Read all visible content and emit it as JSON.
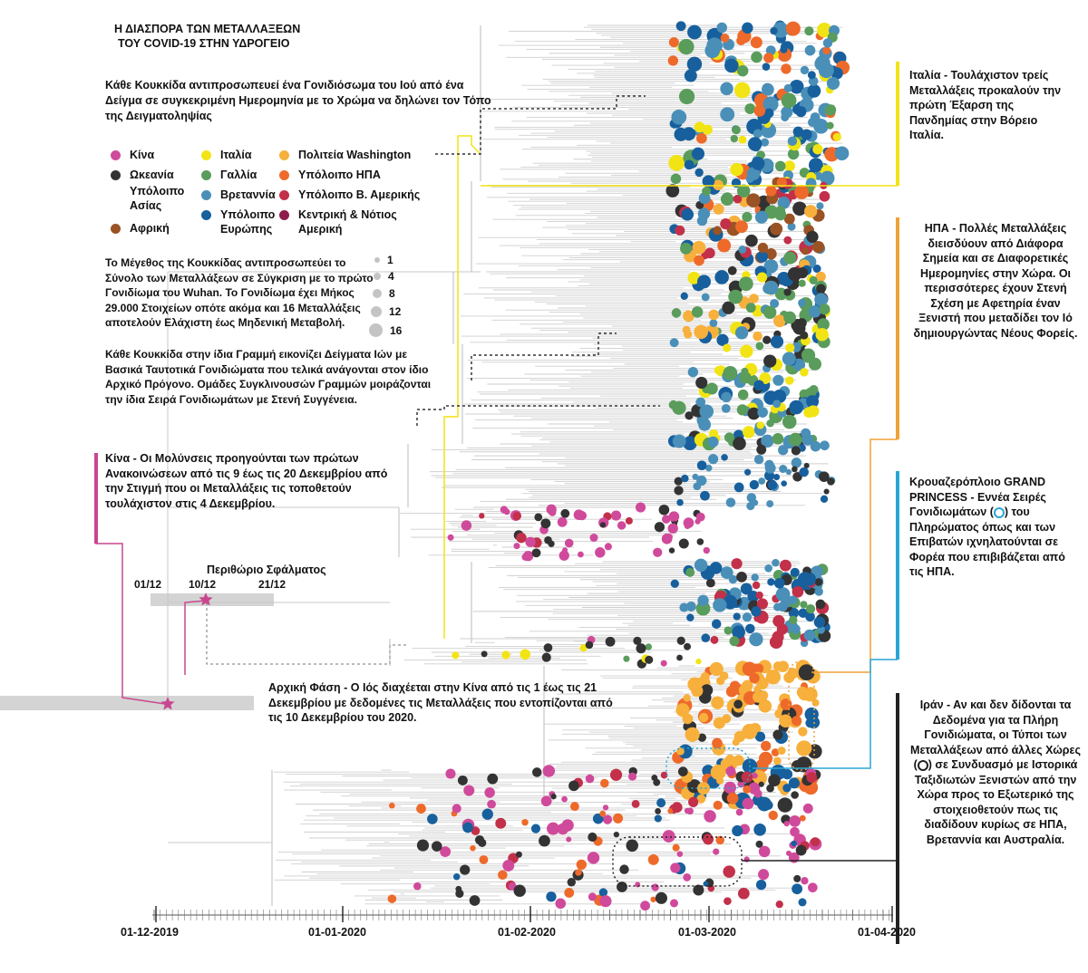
{
  "title": {
    "line1": "Η ΔΙΑΣΠΟΡΑ ΤΩΝ ΜΕΤΑΛΛΑΞΕΩΝ",
    "line2": "ΤΟΥ COVID-19 ΣΤΗΝ ΥΔΡΟΓΕΙΟ"
  },
  "intro": "Κάθε Κουκκίδα αντιπροσωπευεί ένα Γονιδιόσωμα του Ιού από ένα Δείγμα σε συγκεκριμένη Ημερομηνία με το Χρώμα να δηλώνει τον Τόπο της Δειγματοληψίας",
  "legend": [
    {
      "label": "Κίνα",
      "color": "#d04a9b"
    },
    {
      "label": "Ωκεανία",
      "color": "#333333"
    },
    {
      "label": "Υπόλοιπο Ασίας",
      "color": "#ffffff"
    },
    {
      "label": "Αφρική",
      "color": "#9a5324"
    },
    {
      "label": "Ιταλία",
      "color": "#f2e414"
    },
    {
      "label": "Γαλλία",
      "color": "#5a9c5b"
    },
    {
      "label": "Βρεταννία",
      "color": "#4a8fb8"
    },
    {
      "label": "Υπόλοιπο Ευρώπης",
      "color": "#17609d"
    },
    {
      "label": "Πολιτεία Washington",
      "color": "#f7b03c"
    },
    {
      "label": "Υπόλοιπο ΗΠΑ",
      "color": "#ee6a2a"
    },
    {
      "label": "Υπόλοιπο Β. Αμερικής",
      "color": "#c2304a"
    },
    {
      "label": "Κεντρική & Νότιος Αμερική",
      "color": "#8c1c4c"
    }
  ],
  "size_note": "Το Μέγεθος της Κουκκίδας αντιπροσωπεύει το Σύνολο των Μεταλλάξεων σε Σύγκριση με το πρώτο Γονιδίωμα του Wuhan. Το Γονιδίωμα έχει Μήκος 29.000 Στοιχείων οπότε ακόμα και 16 Μεταλλάξεις αποτελούν Ελάχιστη έως Μηδενική Μεταβολή.",
  "size_scale": [
    "1",
    "4",
    "8",
    "12",
    "16"
  ],
  "same_lines_note": "Κάθε Κουκκίδα στην ίδια Γραμμή εικονίζει Δείγματα Ιών με Βασικά Ταυτοτικά Γονιδιώματα που τελικά ανάγονται στον ίδιο Αρχικό Πρόγονο. Ομάδες Συγκλινουσών Γραμμών μοιράζονται την ίδια Σειρά Γονιδιωμάτων με Στενή Συγγένεια.",
  "annotations": {
    "italy": "Ιταλία - Τουλάχιστον τρείς Μεταλλάξεις προκαλούν την πρώτη Έξαρση της Πανδημίας στην Βόρειο Ιταλία.",
    "usa": "ΗΠΑ - Πολλές Μεταλλάξεις διεισδύουν από Διάφορα Σημεία και σε Διαφορετικές Ημερομηνίες στην Χώρα. Οι περισσότερες έχουν Στενή Σχέση με Αφετηρία έναν Ξενιστή που μεταδίδει τον Ιό δημιουργώντας Νέους Φορείς.",
    "grand_princess_1": "Κρουαζερόπλοιο GRAND PRINCESS - Εννέα Σειρές Γονιδιωμάτων (",
    "grand_princess_2": ") του Πληρώματος όπως και των Επιβατών ιχνηλατούνται σε Φορέα που επιβιβάζεται από τις ΗΠΑ.",
    "iran_1": "Ιράν - Αν και δεν δίδονται τα Δεδομένα για τα Πλήρη Γονιδιώματα, οι Τύποι των Μεταλλάξεων από άλλες Χώρες (",
    "iran_2": ") σε Συνδυασμό με Ιστορικά Ταξιδιωτών Ξενιστών από την Χώρα προς το Εξωτερικό της στοιχειοθετούν πως τις διαδίδουν κυρίως σε ΗΠΑ, Βρεταννία και Αυστραλία.",
    "china": "Κίνα - Οι Μολύνσεις προηγούνται των πρώτων Ανακοινώσεων από τις 9 έως τις 20 Δεκεμβρίου από την Στιγμή που οι Μεταλλάξεις τις τοποθετούν τουλάχιστον στις 4 Δεκεμβρίου.",
    "error_margin": "Περιθώριο Σφάλματος",
    "initial_phase": "Αρχική Φάση - Ο Ιός διαχέεται στην Κίνα από τις 1 έως τις 21 Δεκεμβρίου με δεδομένες τις Μεταλλάξεις που εντοπίζονται από τις 10 Δεκεμβρίου του 2020."
  },
  "error_dates": [
    "01/12",
    "10/12",
    "21/12"
  ],
  "axis_dates": [
    "01-12-2019",
    "01-01-2020",
    "01-02-2020",
    "01-03-2020",
    "01-04-2020"
  ],
  "annotation_colors": {
    "italy": "#f2e414",
    "usa": "#f0a23a",
    "grand_princess": "#2aa6d6",
    "iran": "#222222",
    "china": "#c9468f"
  }
}
